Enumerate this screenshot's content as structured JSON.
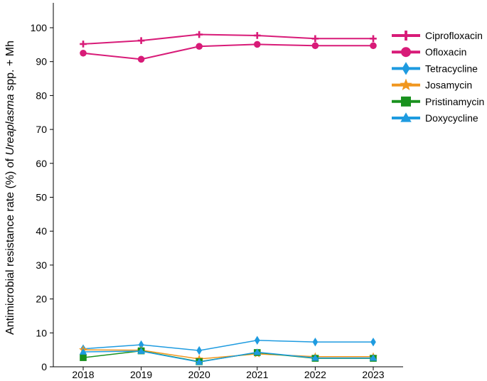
{
  "chart_data": {
    "type": "line",
    "title": "",
    "xlabel": "",
    "ylabel": {
      "prefix": "Antimicrobial resistance rate (%) of ",
      "italic": "Ureaplasma",
      "suffix": " spp. + Mh"
    },
    "x": [
      "2018",
      "2019",
      "2020",
      "2021",
      "2022",
      "2023"
    ],
    "ylim": [
      0,
      105
    ],
    "yticks": [
      "0",
      "10",
      "20",
      "30",
      "40",
      "50",
      "60",
      "70",
      "80",
      "90",
      "100"
    ],
    "grid": false,
    "legend_position": "top-right",
    "series": [
      {
        "name": "Ciprofloxacin",
        "color": "#d81b78",
        "marker": "plus",
        "bold": true,
        "values": [
          95.2,
          96.2,
          98.0,
          97.7,
          96.8,
          96.8
        ]
      },
      {
        "name": "Ofloxacin",
        "color": "#d81b78",
        "marker": "circle",
        "bold": true,
        "values": [
          92.5,
          90.7,
          94.5,
          95.1,
          94.7,
          94.7
        ]
      },
      {
        "name": "Tetracycline",
        "color": "#1e9be0",
        "marker": "diamond",
        "bold": false,
        "values": [
          5.3,
          6.5,
          4.8,
          7.8,
          7.3,
          7.3
        ]
      },
      {
        "name": "Josamycin",
        "color": "#f0961e",
        "marker": "star",
        "bold": false,
        "values": [
          5.0,
          4.9,
          2.3,
          3.8,
          3.0,
          3.0
        ]
      },
      {
        "name": "Pristinamycin",
        "color": "#19911e",
        "marker": "square",
        "bold": false,
        "values": [
          2.7,
          4.7,
          1.5,
          4.2,
          2.5,
          2.5
        ]
      },
      {
        "name": "Doxycycline",
        "color": "#1e9be0",
        "marker": "triangle",
        "bold": false,
        "values": [
          4.4,
          4.6,
          1.4,
          4.3,
          2.6,
          2.6
        ]
      }
    ]
  }
}
